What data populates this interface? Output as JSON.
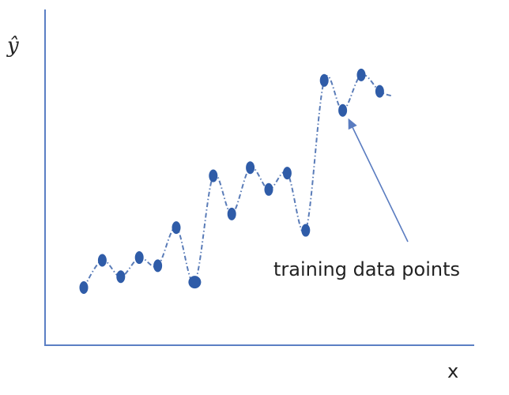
{
  "chart_data": {
    "type": "scatter",
    "xlabel": "x",
    "ylabel": "ŷ",
    "annotation": "training data points",
    "points": [
      {
        "x": 1,
        "y": 1
      },
      {
        "x": 2,
        "y": 2
      },
      {
        "x": 3,
        "y": 1.4
      },
      {
        "x": 4,
        "y": 2.1
      },
      {
        "x": 5,
        "y": 1.8
      },
      {
        "x": 6,
        "y": 3.2
      },
      {
        "x": 7,
        "y": 1.2
      },
      {
        "x": 8,
        "y": 5.1
      },
      {
        "x": 9,
        "y": 3.7
      },
      {
        "x": 10,
        "y": 5.4
      },
      {
        "x": 11,
        "y": 4.6
      },
      {
        "x": 12,
        "y": 5.2
      },
      {
        "x": 13,
        "y": 3.1
      },
      {
        "x": 14,
        "y": 8.6
      },
      {
        "x": 15,
        "y": 7.5
      },
      {
        "x": 16,
        "y": 8.8
      },
      {
        "x": 17,
        "y": 8.2
      }
    ],
    "annotated_point_index": 14,
    "colors": {
      "axis": "#5b7fc4",
      "points": "#2f5ca8",
      "curve": "#5a7cb8",
      "arrow": "#5a7cc0"
    },
    "grid": false
  }
}
